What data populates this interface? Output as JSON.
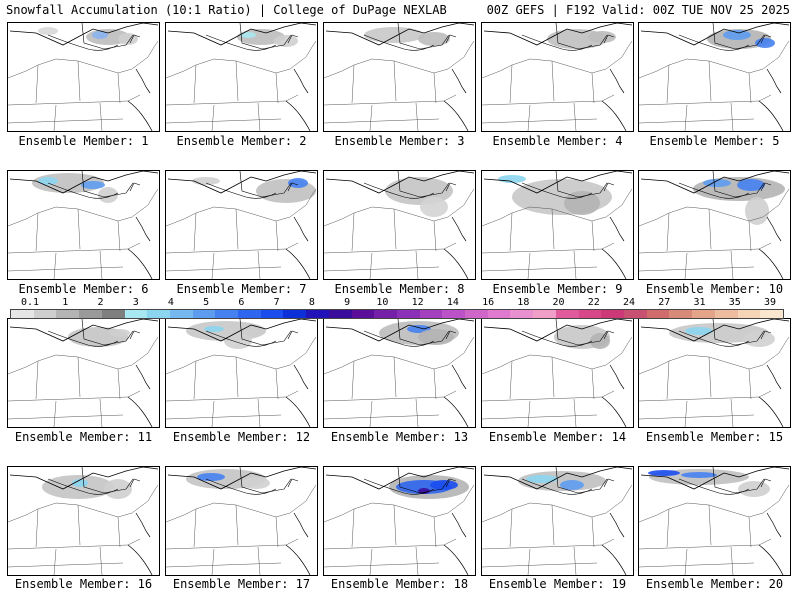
{
  "header": {
    "left": "Snowfall Accumulation (10:1 Ratio) | College of DuPage NEXLAB",
    "right": "00Z GEFS | F192 Valid: 00Z TUE NOV 25 2025"
  },
  "colorbar": {
    "labels": [
      "0.1",
      "1",
      "2",
      "3",
      "4",
      "5",
      "6",
      "7",
      "8",
      "9",
      "10",
      "12",
      "14",
      "16",
      "18",
      "20",
      "22",
      "24",
      "27",
      "31",
      "35",
      "39"
    ],
    "colors": [
      "#e6e6e6",
      "#cfcfcf",
      "#b4b4b4",
      "#9a9a9a",
      "#7f7f7f",
      "#a8e8f0",
      "#8cd5f0",
      "#76b8f0",
      "#5e9cf0",
      "#4682ef",
      "#2f66ef",
      "#1a4cee",
      "#0b30d8",
      "#2014b8",
      "#3a0c9c",
      "#5a0e9a",
      "#7420a8",
      "#8c30b8",
      "#a440c0",
      "#bc52c8",
      "#d066c8",
      "#e07ad0",
      "#e890d0",
      "#f0a0c8",
      "#e05a9c",
      "#d84888",
      "#cc3878",
      "#c85070",
      "#d06c6c",
      "#d88a78",
      "#e4a48a",
      "#eebc9e",
      "#f6d4b6",
      "#fbe6cf"
    ]
  },
  "members": [
    {
      "label": "Ensemble Member: 1"
    },
    {
      "label": "Ensemble Member: 2"
    },
    {
      "label": "Ensemble Member: 3"
    },
    {
      "label": "Ensemble Member: 4"
    },
    {
      "label": "Ensemble Member: 5"
    },
    {
      "label": "Ensemble Member: 6"
    },
    {
      "label": "Ensemble Member: 7"
    },
    {
      "label": "Ensemble Member: 8"
    },
    {
      "label": "Ensemble Member: 9"
    },
    {
      "label": "Ensemble Member: 10"
    },
    {
      "label": "Ensemble Member: 11"
    },
    {
      "label": "Ensemble Member: 12"
    },
    {
      "label": "Ensemble Member: 13"
    },
    {
      "label": "Ensemble Member: 14"
    },
    {
      "label": "Ensemble Member: 15"
    },
    {
      "label": "Ensemble Member: 16"
    },
    {
      "label": "Ensemble Member: 17"
    },
    {
      "label": "Ensemble Member: 18"
    },
    {
      "label": "Ensemble Member: 19"
    },
    {
      "label": "Ensemble Member: 20"
    }
  ]
}
